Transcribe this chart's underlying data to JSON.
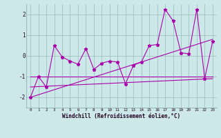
{
  "xlabel": "Windchill (Refroidissement éolien,°C)",
  "bg_color": "#cce8e8",
  "line_color": "#aa00aa",
  "grid_color": "#99bbbb",
  "xlim": [
    -0.5,
    23.5
  ],
  "ylim": [
    -2.5,
    2.5
  ],
  "yticks": [
    -2,
    -1,
    0,
    1,
    2
  ],
  "xticks": [
    0,
    1,
    2,
    3,
    4,
    5,
    6,
    7,
    8,
    9,
    10,
    11,
    12,
    13,
    14,
    15,
    16,
    17,
    18,
    19,
    20,
    21,
    22,
    23
  ],
  "zigzag_x": [
    0,
    1,
    2,
    3,
    4,
    5,
    6,
    7,
    8,
    9,
    10,
    11,
    12,
    13,
    14,
    15,
    16,
    17,
    18,
    19,
    20,
    21,
    22,
    23
  ],
  "zigzag_y": [
    -2.0,
    -1.0,
    -1.5,
    0.5,
    -0.05,
    -0.25,
    -0.4,
    0.35,
    -0.65,
    -0.35,
    -0.25,
    -0.3,
    -1.35,
    -0.45,
    -0.3,
    0.5,
    0.55,
    2.25,
    1.7,
    0.15,
    0.1,
    2.25,
    -1.1,
    0.7
  ],
  "line1_x": [
    0,
    23
  ],
  "line1_y": [
    -2.0,
    0.8
  ],
  "line2_x": [
    0,
    23
  ],
  "line2_y": [
    -1.0,
    -1.0
  ],
  "line3_x": [
    0,
    23
  ],
  "line3_y": [
    -1.5,
    -1.1
  ],
  "xlabel_fontsize": 5.5,
  "xlabel_color": "#220022",
  "xtick_fontsize": 4.2,
  "ytick_fontsize": 5.5,
  "marker_size": 3.5
}
